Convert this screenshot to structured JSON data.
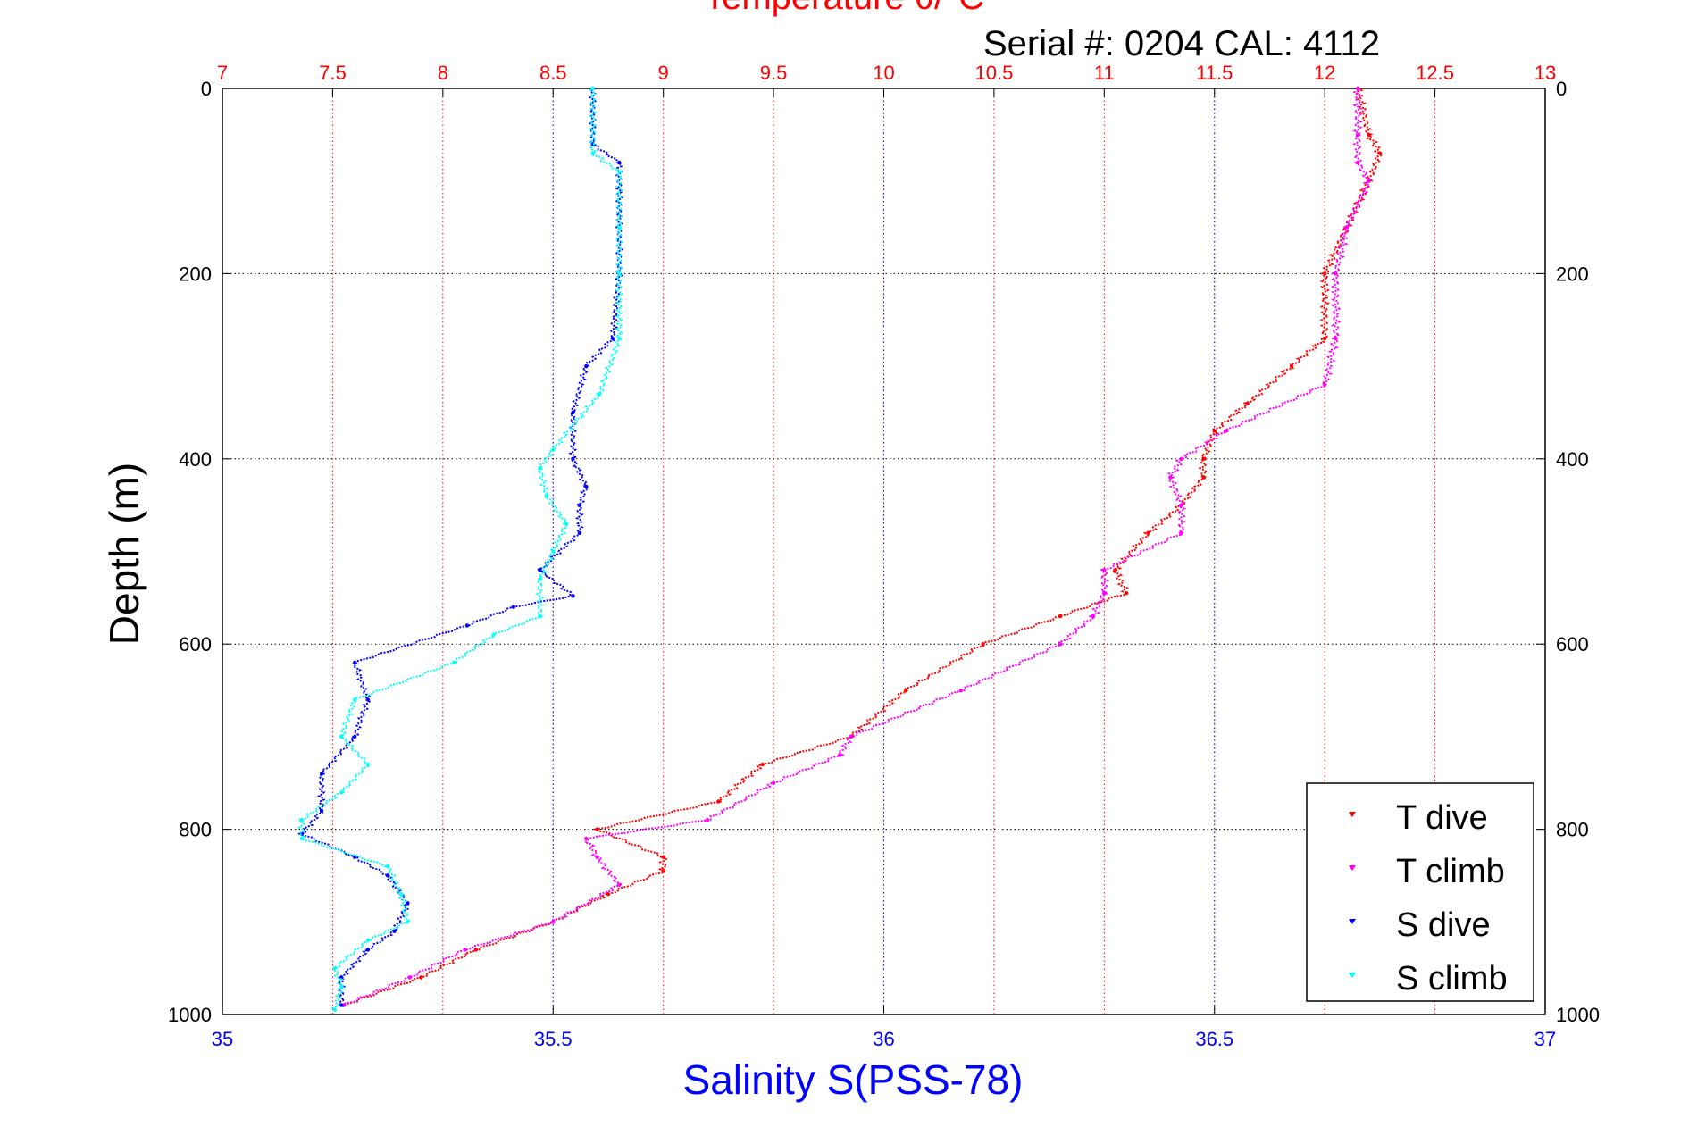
{
  "chart_data": {
    "type": "scatter",
    "top_title": "Temperature θ/°C",
    "subtitle": "Serial #: 0204  CAL: 4112",
    "xlabel": "Salinity S(PSS-78)",
    "ylabel": "Depth (m)",
    "colors": {
      "temperature_axis": "#ff0000",
      "salinity_axis": "#0000ff"
    },
    "temp_axis": {
      "range": [
        7,
        13
      ],
      "ticks": [
        "7",
        "7.5",
        "8",
        "8.5",
        "9",
        "9.5",
        "10",
        "10.5",
        "11",
        "11.5",
        "12",
        "12.5",
        "13"
      ]
    },
    "sal_axis": {
      "range": [
        35,
        37
      ],
      "ticks": [
        "35",
        "35.5",
        "36",
        "36.5",
        "37"
      ]
    },
    "depth_axis": {
      "range": [
        0,
        1000
      ],
      "reversed": true,
      "ticks": [
        "0",
        "200",
        "400",
        "600",
        "800",
        "1000"
      ]
    },
    "series": [
      {
        "name": "T dive",
        "axis": "temp",
        "color": "#ff0000",
        "depth": [
          0,
          50,
          70,
          100,
          150,
          200,
          270,
          300,
          340,
          370,
          400,
          420,
          450,
          480,
          520,
          545,
          570,
          600,
          650,
          700,
          730,
          770,
          800,
          830,
          845,
          870,
          900,
          930,
          960,
          990
        ],
        "values": [
          12.15,
          12.2,
          12.25,
          12.2,
          12.1,
          12.0,
          12.0,
          11.85,
          11.65,
          11.5,
          11.45,
          11.45,
          11.35,
          11.2,
          11.05,
          11.1,
          10.8,
          10.45,
          10.1,
          9.85,
          9.45,
          9.25,
          8.7,
          9.0,
          9.0,
          8.75,
          8.5,
          8.15,
          7.9,
          7.55
        ]
      },
      {
        "name": "T climb",
        "axis": "temp",
        "color": "#ff00ff",
        "depth": [
          0,
          50,
          80,
          100,
          150,
          200,
          270,
          320,
          370,
          400,
          420,
          450,
          480,
          520,
          545,
          570,
          600,
          650,
          700,
          720,
          750,
          790,
          810,
          830,
          860,
          900,
          930,
          960,
          990
        ],
        "values": [
          12.15,
          12.15,
          12.15,
          12.2,
          12.1,
          12.05,
          12.05,
          12.0,
          11.55,
          11.35,
          11.3,
          11.35,
          11.35,
          11.0,
          11.0,
          10.95,
          10.8,
          10.35,
          9.85,
          9.8,
          9.5,
          9.2,
          8.65,
          8.7,
          8.8,
          8.5,
          8.1,
          7.85,
          7.55
        ]
      },
      {
        "name": "S dive",
        "axis": "sal",
        "color": "#0000ff",
        "depth": [
          0,
          60,
          80,
          150,
          200,
          270,
          300,
          350,
          400,
          430,
          450,
          480,
          520,
          548,
          560,
          580,
          620,
          660,
          700,
          740,
          780,
          805,
          830,
          850,
          880,
          910,
          930,
          960,
          990
        ],
        "values": [
          35.56,
          35.56,
          35.6,
          35.6,
          35.6,
          35.59,
          35.55,
          35.53,
          35.53,
          35.55,
          35.54,
          35.54,
          35.48,
          35.53,
          35.44,
          35.37,
          35.2,
          35.22,
          35.2,
          35.15,
          35.15,
          35.12,
          35.2,
          35.25,
          35.28,
          35.26,
          35.22,
          35.18,
          35.18
        ]
      },
      {
        "name": "S climb",
        "axis": "sal",
        "color": "#00ffff",
        "depth": [
          0,
          70,
          90,
          150,
          200,
          270,
          330,
          390,
          410,
          440,
          470,
          500,
          530,
          570,
          590,
          620,
          660,
          700,
          730,
          760,
          790,
          810,
          840,
          870,
          900,
          920,
          950,
          970,
          995
        ],
        "values": [
          35.56,
          35.56,
          35.6,
          35.6,
          35.6,
          35.6,
          35.57,
          35.5,
          35.48,
          35.49,
          35.52,
          35.5,
          35.48,
          35.48,
          35.41,
          35.35,
          35.2,
          35.18,
          35.22,
          35.18,
          35.12,
          35.12,
          35.25,
          35.27,
          35.28,
          35.22,
          35.17,
          35.18,
          35.17
        ]
      }
    ],
    "legend": {
      "position": "bottom-right",
      "items": [
        "T dive",
        "T climb",
        "S dive",
        "S climb"
      ]
    }
  }
}
